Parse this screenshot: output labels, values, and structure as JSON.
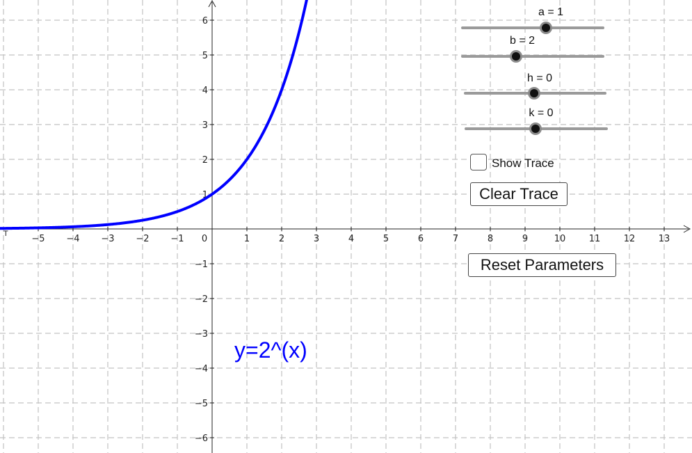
{
  "graph": {
    "x_ticks": [
      "−5",
      "−4",
      "−3",
      "−2",
      "−1",
      "0",
      "1",
      "2",
      "3",
      "4",
      "5",
      "6",
      "7",
      "8",
      "9",
      "10",
      "11",
      "12",
      "13"
    ],
    "y_ticks": [
      "6",
      "5",
      "4",
      "3",
      "2",
      "1",
      "−1",
      "−2",
      "−3",
      "−4",
      "−5",
      "−6"
    ],
    "function_label": "y=2^(x)",
    "function_color": "#0000ff",
    "grid": "dashed"
  },
  "sliders": [
    {
      "label": "a = 1",
      "value": 1
    },
    {
      "label": "b = 2",
      "value": 2
    },
    {
      "label": "h = 0",
      "value": 0
    },
    {
      "label": "k = 0",
      "value": 0
    }
  ],
  "show_trace": {
    "label": "Show Trace",
    "checked": false
  },
  "buttons": {
    "clear_trace": "Clear Trace",
    "reset_parameters": "Reset Parameters"
  }
}
